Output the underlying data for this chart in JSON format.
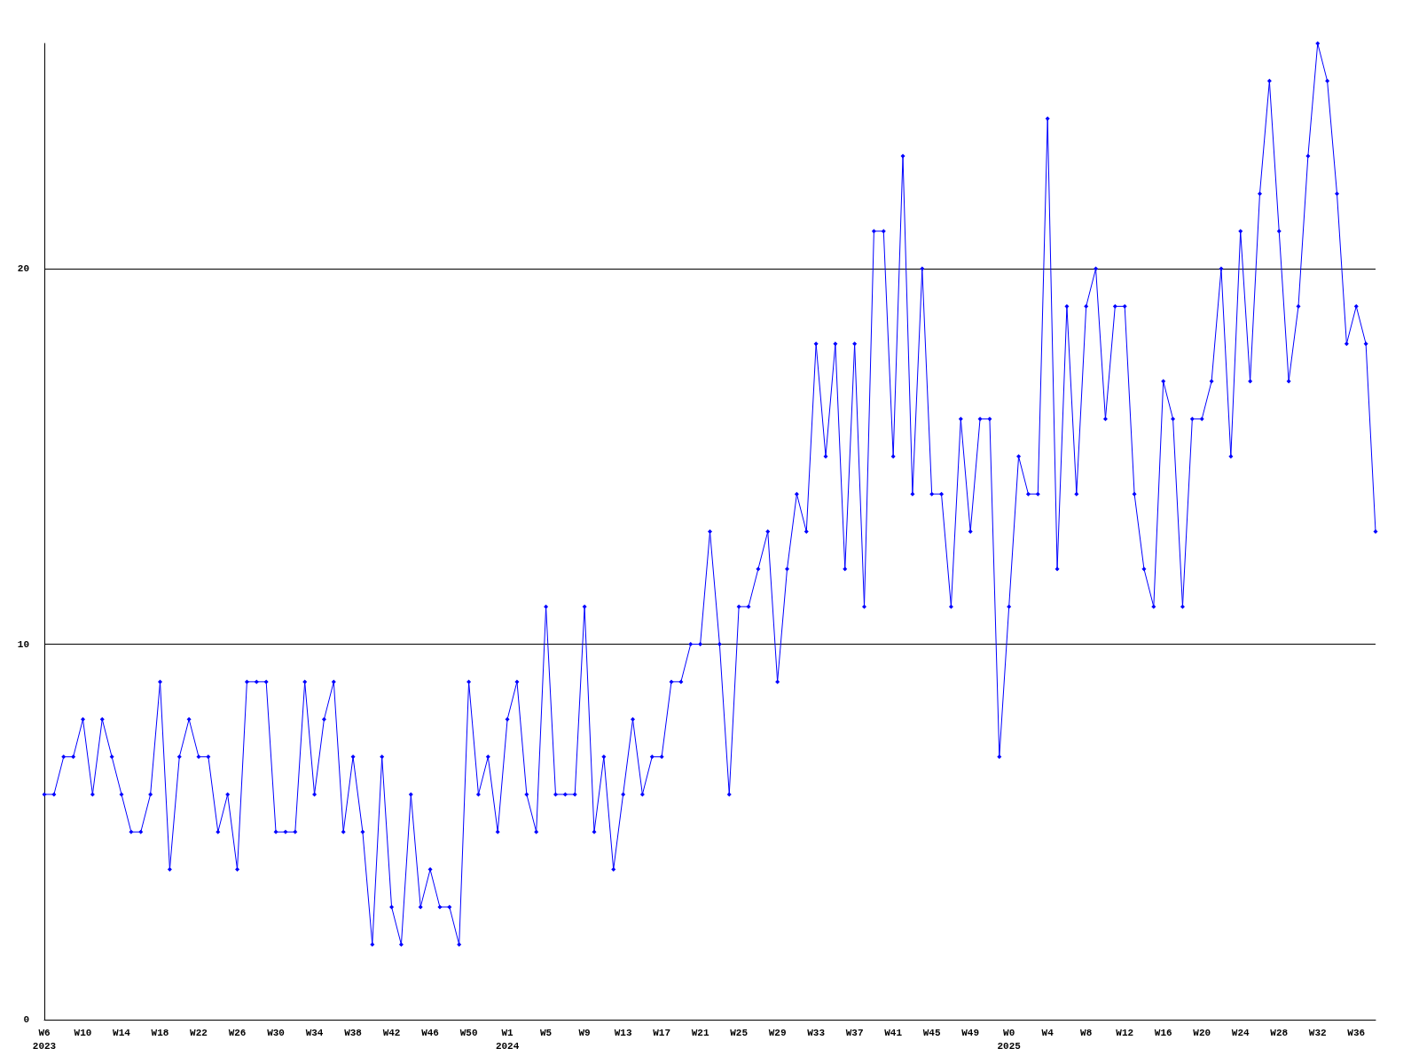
{
  "chart_data": {
    "type": "line",
    "categories": [
      "W6\n2023",
      null,
      null,
      null,
      "W10",
      null,
      null,
      null,
      "W14",
      null,
      null,
      null,
      "W18",
      null,
      null,
      null,
      "W22",
      null,
      null,
      null,
      "W26",
      null,
      null,
      null,
      "W30",
      null,
      null,
      null,
      "W34",
      null,
      null,
      null,
      "W38",
      null,
      null,
      null,
      "W42",
      null,
      null,
      null,
      "W46",
      null,
      null,
      null,
      "W50",
      null,
      null,
      null,
      "W1\n2024",
      null,
      null,
      null,
      "W5",
      null,
      null,
      null,
      "W9",
      null,
      null,
      null,
      "W13",
      null,
      null,
      null,
      "W17",
      null,
      null,
      null,
      "W21",
      null,
      null,
      null,
      "W25",
      null,
      null,
      null,
      "W29",
      null,
      null,
      null,
      "W33",
      null,
      null,
      null,
      "W37",
      null,
      null,
      null,
      "W41",
      null,
      null,
      null,
      "W45",
      null,
      null,
      null,
      "W49",
      null,
      null,
      null,
      "W0\n2025",
      null,
      null,
      null,
      "W4",
      null,
      null,
      null,
      "W8",
      null,
      null,
      null,
      "W12",
      null,
      null,
      null,
      "W16",
      null,
      null,
      null,
      "W20",
      null,
      null,
      null,
      "W24",
      null,
      null,
      null,
      "W28",
      null,
      null,
      null,
      "W32",
      null,
      null,
      null,
      "W36",
      null,
      null
    ],
    "series": [
      {
        "color": "#0000ff",
        "values": [
          6,
          6,
          7,
          7,
          8,
          6,
          8,
          7,
          6,
          5,
          5,
          6,
          9,
          4,
          7,
          8,
          7,
          7,
          5,
          6,
          4,
          9,
          9,
          9,
          5,
          5,
          5,
          9,
          6,
          8,
          9,
          5,
          7,
          5,
          2,
          7,
          3,
          2,
          6,
          3,
          4,
          3,
          3,
          2,
          9,
          6,
          7,
          5,
          8,
          9,
          6,
          5,
          11,
          6,
          6,
          6,
          11,
          5,
          7,
          4,
          6,
          8,
          6,
          7,
          7,
          9,
          9,
          10,
          10,
          13,
          10,
          6,
          11,
          11,
          12,
          13,
          9,
          12,
          14,
          13,
          18,
          15,
          18,
          12,
          18,
          11,
          21,
          21,
          15,
          23,
          14,
          20,
          14,
          14,
          11,
          16,
          13,
          16,
          16,
          7,
          11,
          15,
          14,
          14,
          24,
          12,
          19,
          14,
          19,
          20,
          16,
          19,
          19,
          14,
          12,
          11,
          17,
          16,
          11,
          16,
          16,
          17,
          20,
          15,
          21,
          17,
          22,
          25,
          21,
          17,
          19,
          23,
          26,
          25,
          22,
          18,
          19,
          18,
          13
        ]
      }
    ],
    "ylim": [
      0,
      26
    ],
    "yticks": [
      0,
      10,
      20
    ],
    "grid": "y",
    "marker": "diamond",
    "line_style": "solid"
  }
}
